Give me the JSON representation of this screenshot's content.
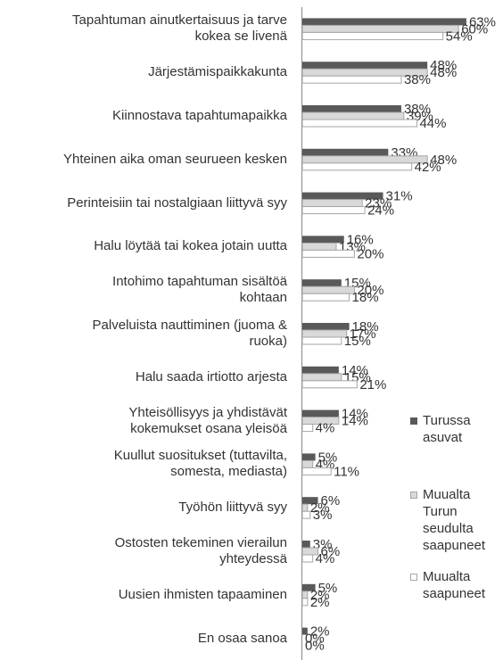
{
  "chart_data": {
    "type": "hbar",
    "categories": [
      "Tapahtuman ainutkertaisuus ja tarve\nkokea se livenä",
      "Järjestämispaikkakunta",
      "Kiinnostava tapahtumapaikka",
      "Yhteinen aika oman seurueen kesken",
      "Perinteisiin tai nostalgiaan liittyvä syy",
      "Halu löytää tai kokea jotain uutta",
      "Intohimo tapahtuman sisältöä\nkohtaan",
      "Palveluista nauttiminen (juoma &\nruoka)",
      "Halu saada irtiotto arjesta",
      "Yhteisöllisyys ja yhdistävät\nkokemukset osana yleisöä",
      "Kuullut suositukset (tuttavilta,\nsomesta, mediasta)",
      "Työhön liittyvä syy",
      "Ostosten tekeminen vierailun\nyhteydessä",
      "Uusien ihmisten tapaaminen",
      "En osaa sanoa"
    ],
    "series": [
      {
        "name": "Turussa asuvat",
        "color": "#595959",
        "values": [
          63,
          48,
          38,
          33,
          31,
          16,
          15,
          18,
          14,
          14,
          5,
          6,
          3,
          5,
          2
        ],
        "value_labels": [
          "63%",
          "48%",
          "38%",
          "33%",
          "31%",
          "16%",
          "15%",
          "18%",
          "14%",
          "14%",
          "5%",
          "6%",
          "3%",
          "5%",
          "2%"
        ]
      },
      {
        "name": "Muualta Turun seudulta saapuneet",
        "color": "#d9d9d9",
        "values": [
          60,
          48,
          39,
          48,
          23,
          13,
          20,
          17,
          15,
          14,
          4,
          2,
          6,
          2,
          0
        ],
        "value_labels": [
          "60%",
          "48%",
          "39%",
          "48%",
          "23%",
          "13%",
          "20%",
          "17%",
          "15%",
          "14%",
          "4%",
          "2%",
          "6%",
          "2%",
          "0%"
        ]
      },
      {
        "name": "Muualta saapuneet",
        "color": "#ffffff",
        "values": [
          54,
          38,
          44,
          42,
          24,
          20,
          18,
          15,
          21,
          4,
          11,
          3,
          4,
          2,
          0
        ],
        "value_labels": [
          "54%",
          "38%",
          "44%",
          "42%",
          "24%",
          "20%",
          "18%",
          "15%",
          "21%",
          "4%",
          "11%",
          "3%",
          "4%",
          "2%",
          "0%"
        ]
      }
    ]
  }
}
